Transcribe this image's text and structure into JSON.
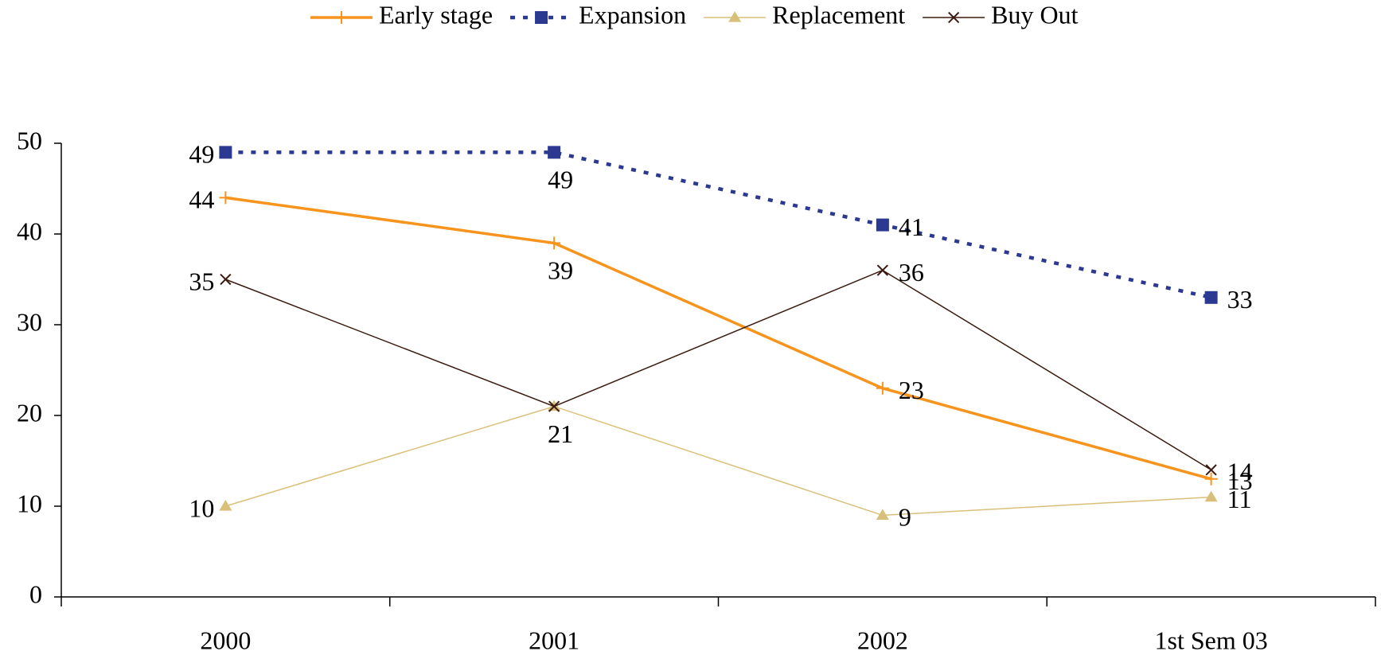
{
  "chart_data": {
    "type": "line",
    "categories": [
      "2000",
      "2001",
      "2002",
      "1st Sem 03"
    ],
    "series": [
      {
        "name": "Early stage",
        "color": "#f7941d",
        "values": [
          44,
          39,
          23,
          13
        ]
      },
      {
        "name": "Expansion",
        "color": "#2b3990",
        "values": [
          49,
          49,
          41,
          33
        ]
      },
      {
        "name": "Replacement",
        "color": "#d9c07a",
        "values": [
          10,
          21,
          9,
          11
        ]
      },
      {
        "name": "Buy Out",
        "color": "#3b1a0f",
        "values": [
          35,
          21,
          36,
          14
        ]
      }
    ],
    "ylim": [
      0,
      50
    ],
    "yticks": [
      0,
      10,
      20,
      30,
      40,
      50
    ],
    "grid": false,
    "legend": "top"
  }
}
